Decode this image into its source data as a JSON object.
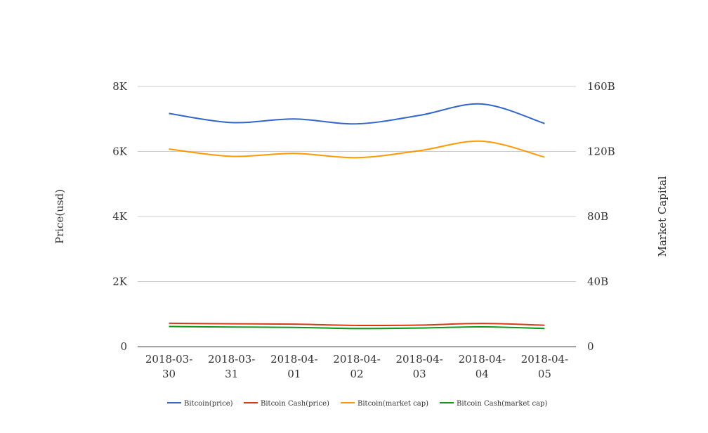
{
  "chart_data": {
    "type": "line",
    "title": "",
    "x": [
      "2018-03-30",
      "2018-03-31",
      "2018-04-01",
      "2018-04-02",
      "2018-04-03",
      "2018-04-04",
      "2018-04-05"
    ],
    "x_tick_lines": [
      [
        "2018-03-",
        "30"
      ],
      [
        "2018-03-",
        "31"
      ],
      [
        "2018-04-",
        "01"
      ],
      [
        "2018-04-",
        "02"
      ],
      [
        "2018-04-",
        "03"
      ],
      [
        "2018-04-",
        "04"
      ],
      [
        "2018-04-",
        "05"
      ]
    ],
    "ylabel": "Price(usd)",
    "ylabel_right": "Market Capital",
    "ylim": [
      0,
      8000
    ],
    "ylim_right": [
      0,
      160000000000
    ],
    "y_ticks": [
      {
        "value": 0,
        "label": "0"
      },
      {
        "value": 2000,
        "label": "2K"
      },
      {
        "value": 4000,
        "label": "4K"
      },
      {
        "value": 6000,
        "label": "6K"
      },
      {
        "value": 8000,
        "label": "8K"
      }
    ],
    "y_ticks_right": [
      {
        "value": 0,
        "label": "0"
      },
      {
        "value": 40000000000,
        "label": "40B"
      },
      {
        "value": 80000000000,
        "label": "80B"
      },
      {
        "value": 120000000000,
        "label": "120B"
      },
      {
        "value": 160000000000,
        "label": "160B"
      }
    ],
    "grid": true,
    "legend_position": "bottom",
    "series": [
      {
        "name": "Bitcoin(price)",
        "axis": "left",
        "color": "#3366cc",
        "values": [
          7170,
          6890,
          7000,
          6850,
          7110,
          7460,
          6860
        ]
      },
      {
        "name": "Bitcoin Cash(price)",
        "axis": "left",
        "color": "#dc3912",
        "values": [
          715,
          700,
          690,
          650,
          660,
          710,
          655
        ]
      },
      {
        "name": "Bitcoin(market cap)",
        "axis": "right",
        "color": "#ff9900",
        "values": [
          121500000000,
          117000000000,
          118800000000,
          116200000000,
          120500000000,
          126300000000,
          116500000000
        ]
      },
      {
        "name": "Bitcoin Cash(market cap)",
        "axis": "right",
        "color": "#109618",
        "values": [
          12300000000,
          12000000000,
          11800000000,
          11100000000,
          11400000000,
          12100000000,
          11100000000
        ]
      }
    ]
  }
}
